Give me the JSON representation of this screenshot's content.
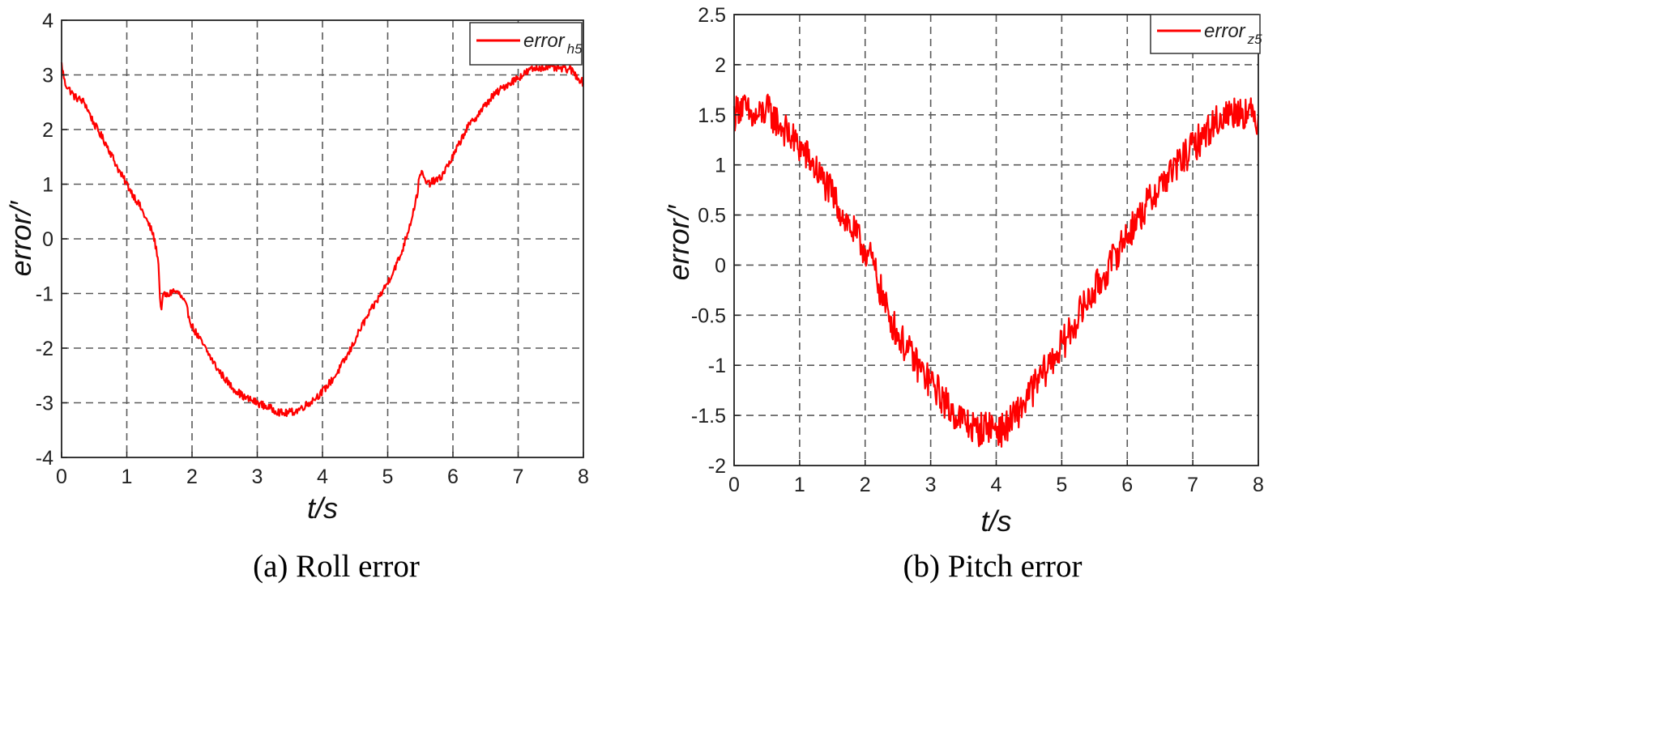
{
  "chart_data": [
    {
      "type": "line",
      "caption": "(a) Roll error",
      "xlabel": "t/s",
      "ylabel": "error/′",
      "xlim": [
        0,
        8
      ],
      "ylim": [
        -4,
        4
      ],
      "xticks": [
        "0",
        "1",
        "2",
        "3",
        "4",
        "5",
        "6",
        "7",
        "8"
      ],
      "yticks": [
        "-4",
        "-3",
        "-2",
        "-1",
        "0",
        "1",
        "2",
        "3",
        "4"
      ],
      "grid": true,
      "legend_position": "top-right",
      "color": "#ff0000",
      "series": [
        {
          "name": "error_h5",
          "name_base": "error",
          "name_sub": "h5",
          "x": [
            0.0,
            0.05,
            0.2,
            0.35,
            0.5,
            0.7,
            0.9,
            1.0,
            1.2,
            1.4,
            1.48,
            1.52,
            1.57,
            1.62,
            1.7,
            1.8,
            1.9,
            2.0,
            2.2,
            2.4,
            2.6,
            2.8,
            3.0,
            3.2,
            3.4,
            3.6,
            3.8,
            4.0,
            4.2,
            4.4,
            4.6,
            4.8,
            5.0,
            5.2,
            5.35,
            5.45,
            5.5,
            5.6,
            5.8,
            6.0,
            6.2,
            6.4,
            6.6,
            6.8,
            7.0,
            7.2,
            7.4,
            7.6,
            7.8,
            8.0
          ],
          "y": [
            3.2,
            2.85,
            2.6,
            2.5,
            2.1,
            1.7,
            1.2,
            1.0,
            0.6,
            0.1,
            -0.35,
            -1.3,
            -1.0,
            -1.05,
            -0.95,
            -1.0,
            -1.2,
            -1.6,
            -2.0,
            -2.4,
            -2.7,
            -2.9,
            -3.0,
            -3.1,
            -3.2,
            -3.15,
            -3.0,
            -2.8,
            -2.5,
            -2.1,
            -1.6,
            -1.2,
            -0.8,
            -0.3,
            0.3,
            0.8,
            1.25,
            1.0,
            1.1,
            1.5,
            2.0,
            2.3,
            2.6,
            2.8,
            2.95,
            3.1,
            3.15,
            3.12,
            3.1,
            2.85
          ],
          "noise_amplitude": 0.07
        }
      ]
    },
    {
      "type": "line",
      "caption": "(b) Pitch error",
      "xlabel": "t/s",
      "ylabel": "error/′",
      "xlim": [
        0,
        8
      ],
      "ylim": [
        -2,
        2.5
      ],
      "xticks": [
        "0",
        "1",
        "2",
        "3",
        "4",
        "5",
        "6",
        "7",
        "8"
      ],
      "yticks": [
        "-2",
        "-1.5",
        "-1",
        "-0.5",
        "0",
        "0.5",
        "1",
        "1.5",
        "2",
        "2.5"
      ],
      "grid": true,
      "legend_position": "top-right",
      "color": "#ff0000",
      "series": [
        {
          "name": "error_z5",
          "name_base": "error",
          "name_sub": "z5",
          "x": [
            0.0,
            0.1,
            0.3,
            0.5,
            0.7,
            0.9,
            1.1,
            1.3,
            1.5,
            1.7,
            1.9,
            2.1,
            2.3,
            2.5,
            2.7,
            2.9,
            3.1,
            3.3,
            3.5,
            3.7,
            3.9,
            4.1,
            4.3,
            4.5,
            4.7,
            4.9,
            5.1,
            5.3,
            5.5,
            5.7,
            5.9,
            6.1,
            6.3,
            6.5,
            6.7,
            6.9,
            7.1,
            7.3,
            7.5,
            7.7,
            7.9,
            8.0
          ],
          "y": [
            1.5,
            1.6,
            1.45,
            1.55,
            1.4,
            1.25,
            1.1,
            0.9,
            0.7,
            0.45,
            0.25,
            0.05,
            -0.4,
            -0.7,
            -0.9,
            -1.1,
            -1.25,
            -1.45,
            -1.55,
            -1.65,
            -1.6,
            -1.65,
            -1.5,
            -1.3,
            -1.1,
            -0.9,
            -0.7,
            -0.45,
            -0.25,
            -0.05,
            0.2,
            0.4,
            0.6,
            0.8,
            0.95,
            1.1,
            1.25,
            1.4,
            1.5,
            1.55,
            1.5,
            1.45
          ],
          "noise_amplitude": 0.17
        }
      ]
    }
  ]
}
